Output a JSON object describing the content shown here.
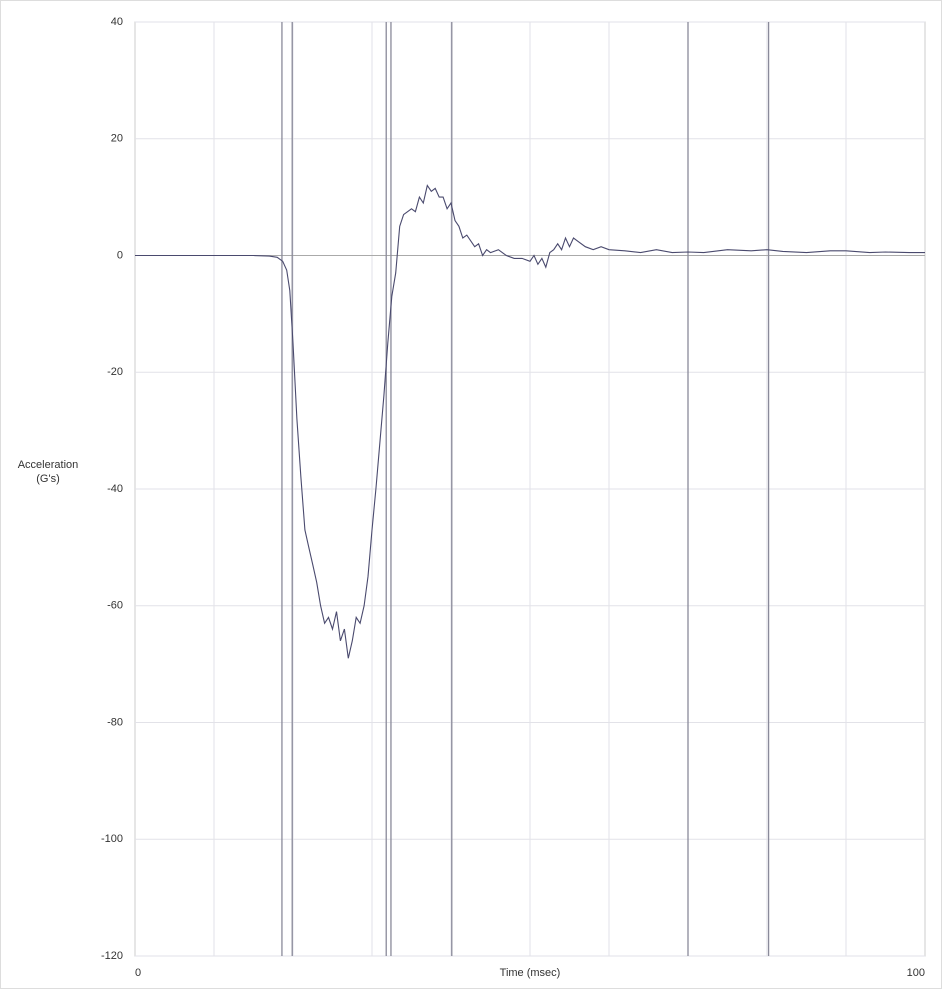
{
  "chart_data": {
    "type": "line",
    "xlabel": "Time (msec)",
    "ylabel": [
      "Acceleration",
      "(G's)"
    ],
    "xlim": [
      0,
      100
    ],
    "ylim": [
      -120,
      40
    ],
    "xticks": [
      0,
      100
    ],
    "yticks": [
      -120,
      -100,
      -80,
      -60,
      -40,
      -20,
      0,
      20,
      40
    ],
    "xgrid": [
      10,
      20,
      30,
      40,
      50,
      60,
      70,
      80,
      90
    ],
    "vlines": [
      18.6,
      19.9,
      31.8,
      32.4,
      40.1,
      70,
      80.2
    ],
    "grid": true,
    "series": [
      {
        "color": "#4a4a6e",
        "x": [
          0,
          5,
          10,
          15,
          17,
          18,
          18.7,
          19.2,
          19.6,
          20,
          20.5,
          21,
          21.5,
          22,
          22.5,
          23,
          23.5,
          24,
          24.5,
          25,
          25.5,
          26,
          26.5,
          27,
          27.5,
          28,
          28.5,
          29,
          29.5,
          30,
          30.5,
          31,
          31.5,
          32,
          32.5,
          33,
          33.5,
          34,
          35,
          35.5,
          36,
          36.5,
          37,
          37.5,
          38,
          38.5,
          39,
          39.5,
          40,
          40.5,
          41,
          41.5,
          42,
          43,
          43.5,
          44,
          44.5,
          45,
          46,
          47,
          48,
          49,
          50,
          50.5,
          51,
          51.5,
          52,
          52.5,
          53,
          53.5,
          54,
          54.5,
          55,
          55.5,
          56,
          57,
          58,
          59,
          60,
          62,
          64,
          66,
          68,
          70,
          72,
          75,
          78,
          80,
          82,
          85,
          88,
          90,
          93,
          95,
          98,
          100
        ],
        "values": [
          0,
          0,
          0,
          0,
          -0.1,
          -0.3,
          -1,
          -2.5,
          -6,
          -15,
          -28,
          -38,
          -47,
          -50,
          -53,
          -56,
          -60,
          -63,
          -62,
          -64,
          -61,
          -66,
          -64,
          -69,
          -66,
          -62,
          -63,
          -60,
          -55,
          -47,
          -40,
          -32,
          -24,
          -15,
          -7,
          -3,
          5,
          7,
          8,
          7.5,
          10,
          9,
          12,
          11,
          11.5,
          10,
          10,
          8,
          9,
          6,
          5,
          3,
          3.5,
          1.5,
          2,
          0,
          1,
          0.5,
          1,
          0,
          -0.5,
          -0.5,
          -1,
          0,
          -1.5,
          -0.5,
          -2,
          0.5,
          1,
          2,
          1,
          3,
          1.5,
          3,
          2.5,
          1.5,
          1,
          1.5,
          1,
          0.8,
          0.5,
          1,
          0.5,
          0.6,
          0.5,
          1,
          0.8,
          1,
          0.7,
          0.5,
          0.8,
          0.8,
          0.5,
          0.6,
          0.5,
          0.5
        ]
      }
    ]
  }
}
